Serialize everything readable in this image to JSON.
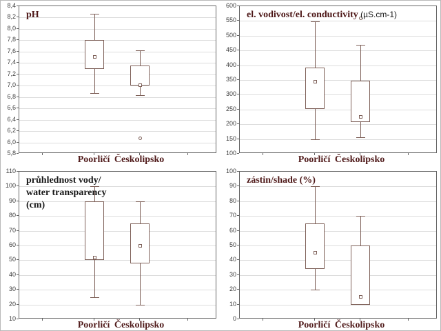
{
  "colors": {
    "box_stroke": "#7d5f57",
    "grid": "#dcdcdc",
    "frame": "#646464",
    "tick_text": "#3d3d3d",
    "category_text": "#511c1c",
    "title_maroon": "#4d1717",
    "title_black": "#161616",
    "background": "#ffffff"
  },
  "categories": [
    "Poorličí",
    "Českolipsko"
  ],
  "chart_data": [
    {
      "type": "box",
      "position": "top-left",
      "title_lines": [
        [
          {
            "text": "pH",
            "style": "serif-maroon"
          }
        ]
      ],
      "ylim": [
        5.8,
        8.4
      ],
      "grid": true,
      "legend": "none",
      "yticks": [
        {
          "value": 8.4,
          "label": "8,4"
        },
        {
          "value": 8.2,
          "label": "8,2"
        },
        {
          "value": 8.0,
          "label": "8,0"
        },
        {
          "value": 7.8,
          "label": "7,8"
        },
        {
          "value": 7.6,
          "label": "7,6"
        },
        {
          "value": 7.4,
          "label": "7,4"
        },
        {
          "value": 7.2,
          "label": "7,2"
        },
        {
          "value": 7.0,
          "label": "7,0"
        },
        {
          "value": 6.8,
          "label": "6,8"
        },
        {
          "value": 6.6,
          "label": "6,6"
        },
        {
          "value": 6.4,
          "label": "6,4"
        },
        {
          "value": 6.2,
          "label": "6,2"
        },
        {
          "value": 6.0,
          "label": "6,0"
        },
        {
          "value": 5.8,
          "label": "5,8"
        }
      ],
      "series": [
        {
          "name": "Poorličí",
          "whisker_low": 6.87,
          "q1": 7.3,
          "mean": 7.51,
          "q3": 7.8,
          "whisker_high": 8.27,
          "outliers": []
        },
        {
          "name": "Českolipsko",
          "whisker_low": 6.83,
          "q1": 7.0,
          "mean": 7.01,
          "q3": 7.35,
          "whisker_high": 7.62,
          "outliers": [
            6.07
          ]
        }
      ]
    },
    {
      "type": "box",
      "position": "top-right",
      "title_lines": [
        [
          {
            "text": "el. vodivost/el. conductivity",
            "style": "serif-maroon"
          },
          {
            "text": " (µS.cm-1)",
            "style": "sans-black"
          }
        ]
      ],
      "ylim": [
        100,
        600
      ],
      "grid": true,
      "legend": "none",
      "yticks": [
        {
          "value": 600,
          "label": "600"
        },
        {
          "value": 550,
          "label": "550"
        },
        {
          "value": 500,
          "label": "500"
        },
        {
          "value": 450,
          "label": "450"
        },
        {
          "value": 400,
          "label": "400"
        },
        {
          "value": 350,
          "label": "350"
        },
        {
          "value": 300,
          "label": "300"
        },
        {
          "value": 250,
          "label": "250"
        },
        {
          "value": 200,
          "label": "200"
        },
        {
          "value": 150,
          "label": "150"
        },
        {
          "value": 100,
          "label": "100"
        }
      ],
      "series": [
        {
          "name": "Poorličí",
          "whisker_low": 150,
          "q1": 252,
          "mean": 345,
          "q3": 392,
          "whisker_high": 548,
          "outliers": []
        },
        {
          "name": "Českolipsko",
          "whisker_low": 157,
          "q1": 207,
          "mean": 225,
          "q3": 347,
          "whisker_high": 468,
          "outliers": [
            560
          ]
        }
      ]
    },
    {
      "type": "box",
      "position": "bottom-left",
      "title_lines": [
        [
          {
            "text": "průhlednost vody/",
            "style": "serif-black"
          }
        ],
        [
          {
            "text": "water transparency",
            "style": "serif-black"
          }
        ],
        [
          {
            "text": "(cm)",
            "style": "serif-black"
          }
        ]
      ],
      "ylim": [
        10,
        110
      ],
      "grid": true,
      "legend": "none",
      "yticks": [
        {
          "value": 110,
          "label": "110"
        },
        {
          "value": 100,
          "label": "100"
        },
        {
          "value": 90,
          "label": "90"
        },
        {
          "value": 80,
          "label": "80"
        },
        {
          "value": 70,
          "label": "70"
        },
        {
          "value": 60,
          "label": "60"
        },
        {
          "value": 50,
          "label": "50"
        },
        {
          "value": 40,
          "label": "40"
        },
        {
          "value": 30,
          "label": "30"
        },
        {
          "value": 20,
          "label": "20"
        },
        {
          "value": 10,
          "label": "10"
        }
      ],
      "series": [
        {
          "name": "Poorličí",
          "whisker_low": 25,
          "q1": 50,
          "mean": 52,
          "q3": 90,
          "whisker_high": 100,
          "outliers": []
        },
        {
          "name": "Českolipsko",
          "whisker_low": 20,
          "q1": 48,
          "mean": 60,
          "q3": 75,
          "whisker_high": 90,
          "outliers": []
        }
      ]
    },
    {
      "type": "box",
      "position": "bottom-right",
      "title_lines": [
        [
          {
            "text": "zástin/shade (%)",
            "style": "serif-maroon"
          }
        ]
      ],
      "ylim": [
        0,
        100
      ],
      "grid": true,
      "legend": "none",
      "yticks": [
        {
          "value": 100,
          "label": "100"
        },
        {
          "value": 90,
          "label": "90"
        },
        {
          "value": 80,
          "label": "80"
        },
        {
          "value": 70,
          "label": "70"
        },
        {
          "value": 60,
          "label": "60"
        },
        {
          "value": 50,
          "label": "50"
        },
        {
          "value": 40,
          "label": "40"
        },
        {
          "value": 30,
          "label": "30"
        },
        {
          "value": 20,
          "label": "20"
        },
        {
          "value": 10,
          "label": "10"
        },
        {
          "value": 0,
          "label": "0"
        }
      ],
      "series": [
        {
          "name": "Poorličí",
          "whisker_low": 20,
          "q1": 34,
          "mean": 45,
          "q3": 65,
          "whisker_high": 90,
          "outliers": []
        },
        {
          "name": "Českolipsko",
          "whisker_low": 10,
          "q1": 10,
          "mean": 15,
          "q3": 50,
          "whisker_high": 70,
          "outliers": []
        }
      ]
    }
  ]
}
